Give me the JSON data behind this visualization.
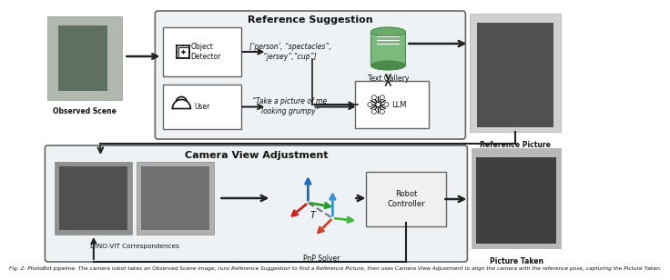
{
  "fig_width": 6.4,
  "fig_height": 2.87,
  "bg_color": "#ffffff",
  "box_light_gray": "#eef2f5",
  "box_edge_color": "#666666",
  "arrow_color": "#222222",
  "text_color": "#111111",
  "ref_suggestion_title": "Reference Suggestion",
  "camera_view_title": "Camera View Adjustment",
  "object_detector_label": "Object\nDetector",
  "user_label": "User",
  "text_gallery_label": "Text Gallery",
  "llm_label": "LLM",
  "robot_controller_label": "Robot\nController",
  "pnp_solver_label": "PnP Solver",
  "dino_vit_label": "DINO-VIT Correspondences",
  "observed_scene_label": "Observed Scene",
  "reference_picture_label": "Reference Picture",
  "picture_taken_label": "Picture Taken",
  "objects_text": "[’person’, “spectacles”,\n“jersey”,“cup”]",
  "user_text": "“Take a picture of me\nlooking grumpy”",
  "caption": "Fig. 2: PhotoBot pipeline. The camera robot takes an Observed Scene image, runs Reference Suggestion to find a Reference Picture, then uses Camera View Adjustment to align the camera with the reference pose, capturing the Picture Taken.",
  "green_color": "#7cb97c",
  "green_dark": "#4a8a4a",
  "green_mid": "#6aaa6a",
  "axis_blue": "#1a6bb5",
  "axis_blue2": "#3a90d0",
  "axis_green": "#2a9a2a",
  "axis_green2": "#40b840",
  "axis_red": "#cc2222",
  "dashed_color": "#777777",
  "T_label": "T",
  "obs_face": "#b0b8b0",
  "obs_inner": "#607060",
  "ref_face": "#d0d0d0",
  "ref_inner": "#505050",
  "pic_face": "#b8b8b8",
  "pic_inner": "#404040"
}
